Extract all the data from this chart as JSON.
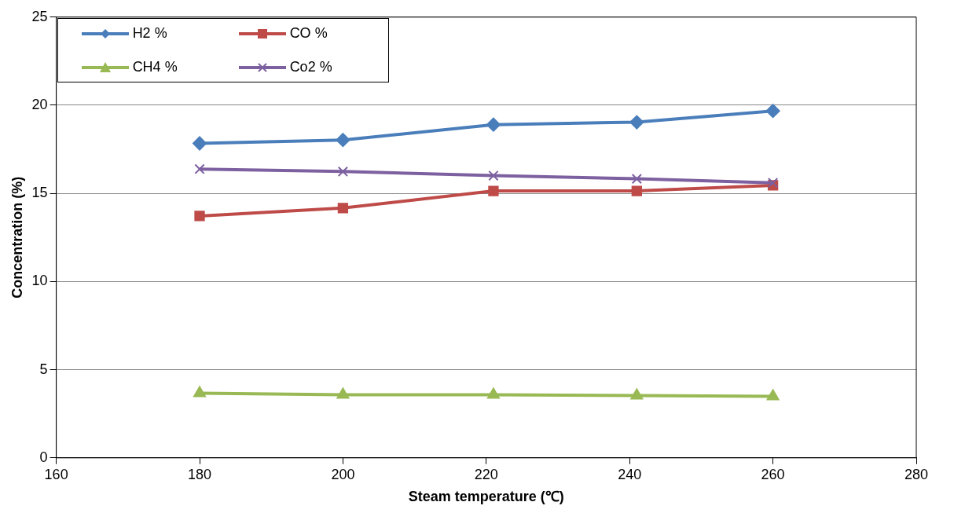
{
  "chart_data": {
    "type": "line",
    "xlabel": "Steam temperature (℃)",
    "ylabel": "Concentration (%)",
    "x": [
      180,
      200,
      221,
      241,
      260
    ],
    "series": [
      {
        "name": "H2 %",
        "color": "#4a7ebb",
        "marker": "diamond",
        "values": [
          17.84,
          18.03,
          18.9,
          19.04,
          19.68
        ]
      },
      {
        "name": "CO %",
        "color": "#be4b48",
        "marker": "square",
        "values": [
          13.72,
          14.17,
          15.14,
          15.14,
          15.46
        ]
      },
      {
        "name": "CH4 %",
        "color": "#98b954",
        "marker": "triangle",
        "values": [
          3.67,
          3.58,
          3.58,
          3.53,
          3.49
        ]
      },
      {
        "name": "Co2 %",
        "color": "#7d60a0",
        "marker": "cross",
        "values": [
          16.38,
          16.24,
          16.01,
          15.83,
          15.6
        ]
      }
    ],
    "xlim": [
      160,
      280
    ],
    "xticks": [
      160,
      180,
      200,
      220,
      240,
      260,
      280
    ],
    "ylim": [
      0,
      25
    ],
    "yticks": [
      0,
      5,
      10,
      15,
      20,
      25
    ],
    "grid": "y",
    "legend": "top left"
  }
}
